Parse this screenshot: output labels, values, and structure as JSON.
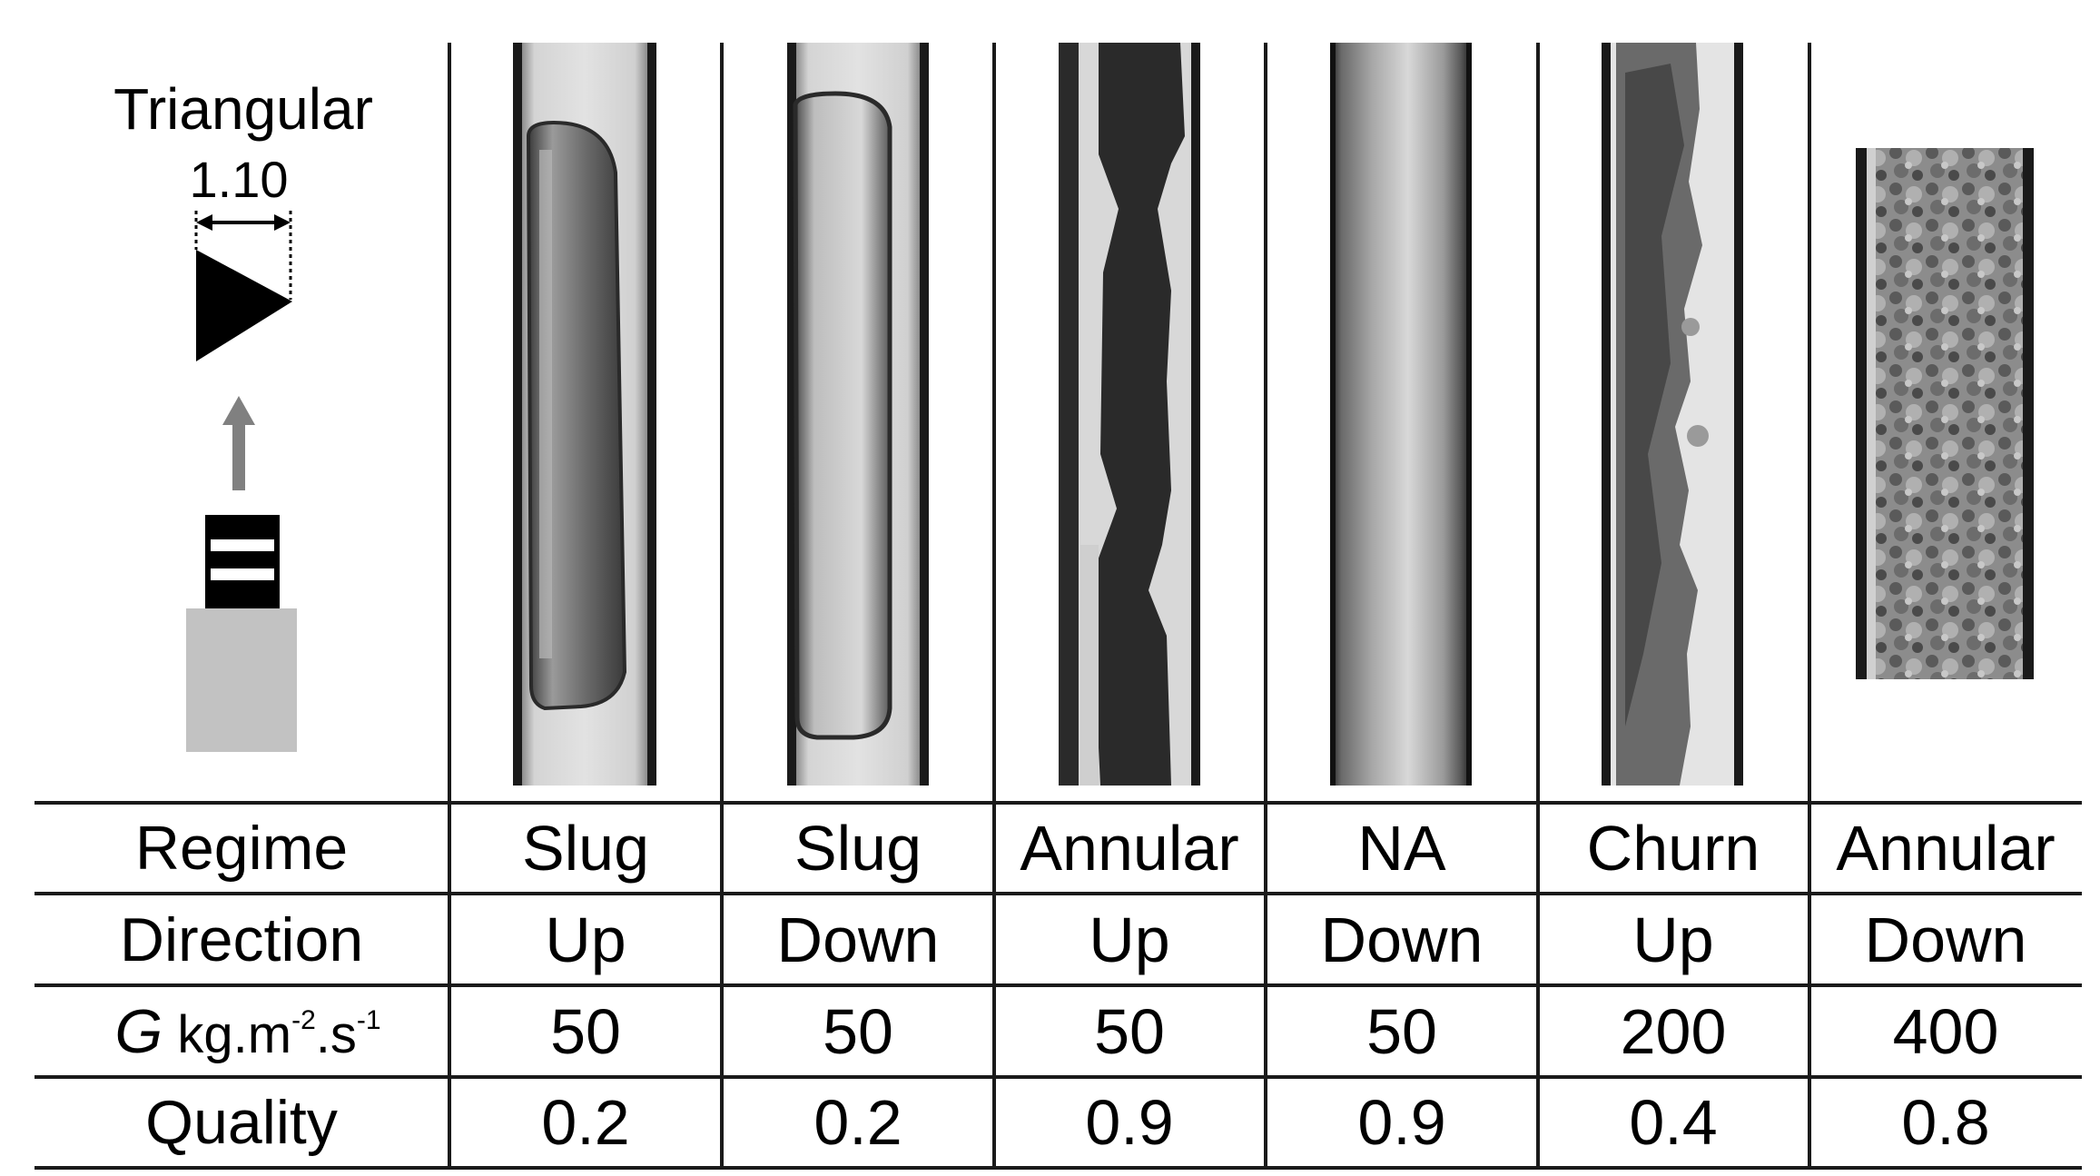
{
  "geometry_label": {
    "shape": "Triangular",
    "dimension": "1.10"
  },
  "table": {
    "row_labels": {
      "regime": "Regime",
      "direction": "Direction",
      "mass_flux_symbol": "G",
      "mass_flux_unit_base": " kg.m",
      "mass_flux_unit_exp1": "-2",
      "mass_flux_unit_mid": ".s",
      "mass_flux_unit_exp2": "-1",
      "quality": "Quality"
    },
    "columns": [
      {
        "regime": "Slug",
        "direction": "Up",
        "mass_flux": "50",
        "quality": "0.2"
      },
      {
        "regime": "Slug",
        "direction": "Down",
        "mass_flux": "50",
        "quality": "0.2"
      },
      {
        "regime": "Annular",
        "direction": "Up",
        "mass_flux": "50",
        "quality": "0.9"
      },
      {
        "regime": "NA",
        "direction": "Down",
        "mass_flux": "50",
        "quality": "0.9"
      },
      {
        "regime": "Churn",
        "direction": "Up",
        "mass_flux": "200",
        "quality": "0.4"
      },
      {
        "regime": "Annular",
        "direction": "Down",
        "mass_flux": "400",
        "quality": "0.8"
      }
    ]
  },
  "images": [
    {
      "name": "slug-up-image"
    },
    {
      "name": "slug-down-image"
    },
    {
      "name": "annular-up-image"
    },
    {
      "name": "na-down-image"
    },
    {
      "name": "churn-up-image"
    },
    {
      "name": "annular-down-image"
    }
  ],
  "colors": {
    "line": "#1a1a1a",
    "arrow": "#808080",
    "heater_block": "#c2c2c2"
  }
}
